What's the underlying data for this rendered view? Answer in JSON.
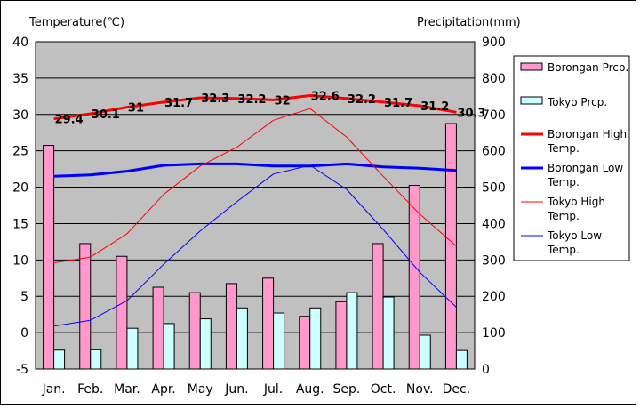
{
  "chart_data": {
    "type": "bar+line",
    "left_axis_title": "Temperature(℃)",
    "right_axis_title": "Precipitation(mm)",
    "categories": [
      "Jan.",
      "Feb.",
      "Mar.",
      "Apr.",
      "May",
      "Jun.",
      "Jul.",
      "Aug.",
      "Sep.",
      "Oct.",
      "Nov.",
      "Dec."
    ],
    "temperature_axis": {
      "min": -5,
      "max": 40,
      "ticks": [
        40,
        35,
        30,
        25,
        20,
        15,
        10,
        5,
        0,
        -5
      ]
    },
    "precipitation_axis": {
      "min": 0,
      "max": 900,
      "ticks": [
        900,
        800,
        700,
        600,
        500,
        400,
        300,
        200,
        100,
        0
      ]
    },
    "grid": true,
    "legend_position": "right",
    "bar_series": [
      {
        "name": "Borongan Prcp.",
        "color": "#ff99cc",
        "values": [
          615,
          345,
          310,
          225,
          210,
          235,
          250,
          145,
          185,
          345,
          505,
          675
        ]
      },
      {
        "name": "Tokyo Prcp.",
        "color": "#ccffff",
        "values": [
          52,
          53,
          112,
          125,
          138,
          168,
          154,
          168,
          210,
          198,
          93,
          51
        ]
      }
    ],
    "line_series": [
      {
        "name": "Borongan High Temp.",
        "color": "#ff0000",
        "width": 3,
        "values": [
          29.4,
          30.1,
          31,
          31.7,
          32.3,
          32.2,
          32,
          32.6,
          32.2,
          31.7,
          31.2,
          30.3
        ],
        "labels": [
          "29.4",
          "30.1",
          "31",
          "31.7",
          "32.3",
          "32.2",
          "32",
          "32.6",
          "32.2",
          "31.7",
          "31.2",
          "30.3"
        ]
      },
      {
        "name": "Borongan Low Temp.",
        "color": "#0000ff",
        "width": 3,
        "values": [
          21.5,
          21.7,
          22.2,
          23,
          23.2,
          23.2,
          22.9,
          22.9,
          23.2,
          22.8,
          22.6,
          22.3
        ]
      },
      {
        "name": "Tokyo High Temp.",
        "color": "#ff0000",
        "width": 1,
        "values": [
          9.6,
          10.4,
          13.6,
          19,
          22.9,
          25.5,
          29.2,
          30.8,
          26.9,
          21.5,
          16.3,
          11.9
        ]
      },
      {
        "name": "Tokyo Low Temp.",
        "color": "#0000ff",
        "width": 1,
        "values": [
          0.9,
          1.7,
          4.4,
          9.4,
          14,
          18,
          21.8,
          23,
          19.7,
          14.2,
          8.3,
          3.5
        ]
      }
    ],
    "legend": {
      "borongan_prcp": "Borongan Prcp.",
      "tokyo_prcp": "Tokyo Prcp.",
      "borongan_high": [
        "Borongan High",
        "Temp."
      ],
      "borongan_low": [
        "Borongan Low",
        "Temp."
      ],
      "tokyo_high": [
        "Tokyo High",
        "Temp."
      ],
      "tokyo_low": [
        "Tokyo Low",
        "Temp."
      ]
    }
  }
}
